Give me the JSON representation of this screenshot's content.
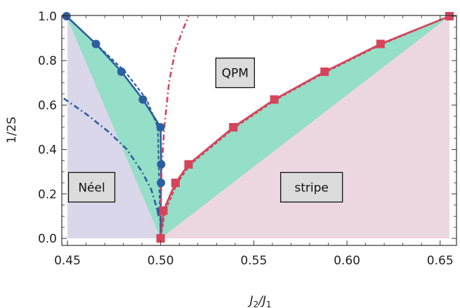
{
  "chart_data": {
    "type": "line",
    "xlabel_main": "J",
    "xlabel_sub1": "2",
    "xlabel_sep": "/J",
    "xlabel_sub2": "1",
    "ylabel": "1/2S",
    "xlim": [
      0.45,
      0.655
    ],
    "ylim": [
      0.0,
      1.0
    ],
    "x_ticks": [
      0.45,
      0.5,
      0.55,
      0.6,
      0.65
    ],
    "x_tick_labels": [
      "0.45",
      "0.50",
      "0.55",
      "0.60",
      "0.65"
    ],
    "y_ticks": [
      0.0,
      0.2,
      0.4,
      0.6,
      0.8,
      1.0
    ],
    "y_tick_labels": [
      "0.0",
      "0.2",
      "0.4",
      "0.6",
      "0.8",
      "1.0"
    ],
    "region_labels": [
      {
        "text": "Néel",
        "x": 0.463,
        "y": 0.23
      },
      {
        "text": "QPM",
        "x": 0.54,
        "y": 0.745
      },
      {
        "text": "stripe",
        "x": 0.581,
        "y": 0.23
      }
    ],
    "colors": {
      "neel_fill": "#dad7ea",
      "qpm_fill": "#95dec8",
      "stripe_fill": "#ecd7e0",
      "blue": "#2c5fa1",
      "red": "#d4445b",
      "label_box": "#dcdcdc"
    },
    "series": [
      {
        "style": "solid",
        "color_key": "blue",
        "marker": "circle",
        "x": [
          0.4495,
          0.4653,
          0.479,
          0.4905,
          0.5,
          0.5003,
          0.5002,
          0.5001,
          0.5
        ],
        "y": [
          1.0,
          0.875,
          0.75,
          0.625,
          0.5,
          0.333,
          0.25,
          0.125,
          0.0
        ]
      },
      {
        "style": "solid",
        "color_key": "red",
        "marker": "square",
        "x": [
          0.5,
          0.5015,
          0.508,
          0.515,
          0.539,
          0.561,
          0.588,
          0.618,
          0.655
        ],
        "y": [
          0.0,
          0.125,
          0.25,
          0.333,
          0.5,
          0.625,
          0.75,
          0.875,
          1.0
        ]
      },
      {
        "style": "dashed",
        "color_key": "blue",
        "marker": "none",
        "x": [
          0.4495,
          0.4653,
          0.481,
          0.4925,
          0.4985,
          0.5
        ],
        "y": [
          1.0,
          0.875,
          0.75,
          0.625,
          0.5,
          0.0
        ]
      },
      {
        "style": "dashed",
        "color_key": "red",
        "marker": "none",
        "x": [
          0.5,
          0.5025,
          0.509,
          0.516,
          0.54,
          0.562,
          0.589,
          0.619,
          0.655
        ],
        "y": [
          0.0,
          0.125,
          0.25,
          0.333,
          0.5,
          0.625,
          0.75,
          0.875,
          1.0
        ]
      },
      {
        "style": "dashdot",
        "color_key": "blue",
        "marker": "none",
        "x": [
          0.448,
          0.46,
          0.472,
          0.482,
          0.49,
          0.495,
          0.4975,
          0.499
        ],
        "y": [
          0.63,
          0.56,
          0.48,
          0.4,
          0.3,
          0.22,
          0.15,
          0.1
        ]
      },
      {
        "style": "dashdot",
        "color_key": "red",
        "marker": "none",
        "x": [
          0.5,
          0.5005,
          0.502,
          0.5045,
          0.508,
          0.5125,
          0.515
        ],
        "y": [
          0.1,
          0.3,
          0.5,
          0.7,
          0.85,
          0.95,
          1.0
        ]
      }
    ]
  }
}
